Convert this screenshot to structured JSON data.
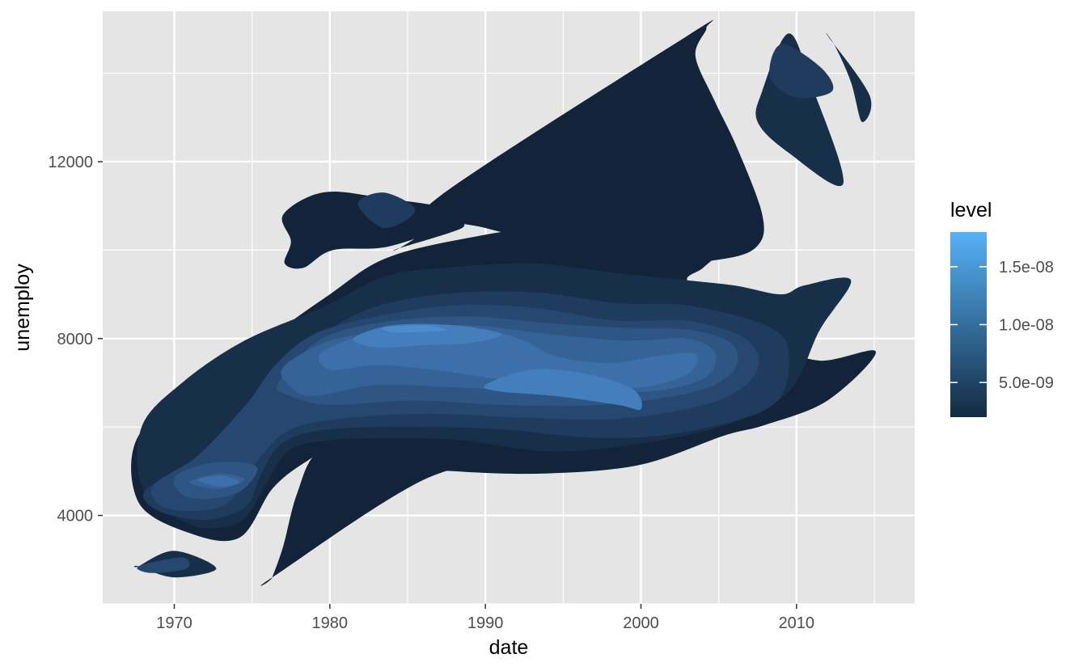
{
  "chart_data": {
    "type": "density_2d_filled_contour",
    "title": "",
    "xlabel": "date",
    "ylabel": "unemploy",
    "x_ticks": [
      "1970",
      "1980",
      "1990",
      "2000",
      "2010"
    ],
    "x_tick_years": [
      1970,
      1980,
      1990,
      2000,
      2010
    ],
    "y_ticks": [
      4000,
      8000,
      12000
    ],
    "y_tick_labels": [
      "4000",
      "8000",
      "12000"
    ],
    "xlim": [
      1965.4,
      2017.6
    ],
    "ylim": [
      2000,
      15400
    ],
    "grid": true,
    "panel_background": "#E5E5E5",
    "legend": {
      "title": "level",
      "position": "right",
      "type": "colorbar",
      "labels": [
        "5.0e-09",
        "1.0e-08",
        "1.5e-08"
      ],
      "values": [
        5e-09,
        1e-08,
        1.5e-08
      ],
      "range": [
        2e-09,
        1.8e-08
      ],
      "color_low": "#132B43",
      "color_high": "#56B1F7"
    },
    "density_bands": [
      {
        "level": 1,
        "color": "#13243A",
        "regions": [
          [
            [
              1967.7,
              5800
            ],
            [
              1972.0,
              6900
            ],
            [
              1976.0,
              8000
            ],
            [
              1980.0,
              9000
            ],
            [
              1983.5,
              9800
            ],
            [
              1988.5,
              10250
            ],
            [
              1995.5,
              10600
            ],
            [
              2001.0,
              10400
            ],
            [
              2004.4,
              10300
            ],
            [
              2005.1,
              10000
            ],
            [
              2004.0,
              9600
            ],
            [
              2003.0,
              9300
            ],
            [
              2005.5,
              8800
            ],
            [
              2008.5,
              7900
            ],
            [
              2011.5,
              7500
            ],
            [
              2015.1,
              7700
            ],
            [
              2012.0,
              6600
            ],
            [
              2008.0,
              6050
            ],
            [
              2005.3,
              5800
            ],
            [
              2000.0,
              5150
            ],
            [
              1994.0,
              4950
            ],
            [
              1988.0,
              5000
            ],
            [
              1983.0,
              5200
            ],
            [
              1980.3,
              5500
            ],
            [
              1978.4,
              5200
            ],
            [
              1976.3,
              4600
            ],
            [
              1974.2,
              3500
            ],
            [
              1971.0,
              3600
            ],
            [
              1967.7,
              4300
            ]
          ],
          [
            [
              1984.5,
              10050
            ],
            [
              1987.5,
              10650
            ],
            [
              1988.5,
              10500
            ],
            [
              1984.5,
              10050
            ]
          ],
          [
            [
              1978.3,
              9600
            ],
            [
              1980.2,
              10000
            ],
            [
              1984.0,
              10100
            ],
            [
              1988.6,
              10800
            ],
            [
              1983.0,
              11200
            ],
            [
              1979.5,
              11300
            ],
            [
              1977.0,
              10800
            ],
            [
              1977.5,
              10200
            ],
            [
              1977.1,
              9700
            ]
          ],
          [
            [
              1987.0,
              11200
            ],
            [
              2003.0,
              14850
            ],
            [
              2004.2,
              15020
            ],
            [
              2003.5,
              14400
            ],
            [
              2004.7,
              13400
            ],
            [
              2006.2,
              12300
            ],
            [
              2007.8,
              10800
            ],
            [
              2007.5,
              10100
            ],
            [
              2005.3,
              9800
            ],
            [
              2000.5,
              9700
            ],
            [
              1995.5,
              10000
            ],
            [
              1990.0,
              10500
            ],
            [
              1987.5,
              10700
            ]
          ],
          [
            [
              1976.3,
              2600
            ],
            [
              1977.0,
              3300
            ],
            [
              1977.9,
              4500
            ],
            [
              1979.3,
              5450
            ],
            [
              1983.0,
              5800
            ],
            [
              1987.0,
              5600
            ],
            [
              1993.5,
              5500
            ],
            [
              1986.0,
              4800
            ],
            [
              1976.3,
              2600
            ]
          ]
        ]
      },
      {
        "level": 2,
        "color": "#182F4A",
        "regions": [
          [
            [
              1971.0,
              3800
            ],
            [
              1968.0,
              4600
            ],
            [
              1967.9,
              6000
            ],
            [
              1970.5,
              7000
            ],
            [
              1974.5,
              7950
            ],
            [
              1979.5,
              8700
            ],
            [
              1983.5,
              9400
            ],
            [
              1987.5,
              9600
            ],
            [
              1993.0,
              9700
            ],
            [
              1998.0,
              9500
            ],
            [
              2002.0,
              9350
            ],
            [
              2006.0,
              9200
            ],
            [
              2009.0,
              9000
            ],
            [
              2010.5,
              9200
            ],
            [
              2013.5,
              9320
            ],
            [
              2011.5,
              8200
            ],
            [
              2009.5,
              6800
            ],
            [
              2005.5,
              6050
            ],
            [
              1999.5,
              5600
            ],
            [
              1994.0,
              5450
            ],
            [
              1988.5,
              5700
            ],
            [
              1984.0,
              5750
            ],
            [
              1980.0,
              5700
            ],
            [
              1977.5,
              5500
            ],
            [
              1976.2,
              4900
            ],
            [
              1974.8,
              4050
            ],
            [
              1973.4,
              3750
            ]
          ],
          [
            [
              2007.8,
              13600
            ],
            [
              2009.5,
              14900
            ],
            [
              2011.0,
              13700
            ],
            [
              2013.0,
              11500
            ],
            [
              2009.5,
              12200
            ],
            [
              2007.5,
              12900
            ]
          ],
          [
            [
              2012.0,
              14850
            ],
            [
              2014.7,
              13500
            ],
            [
              2014.2,
              12900
            ],
            [
              2013.5,
              13800
            ],
            [
              2012.5,
              14600
            ]
          ],
          [
            [
              1967.7,
              2850
            ],
            [
              1970.0,
              3200
            ],
            [
              1972.7,
              2800
            ],
            [
              1970.0,
              2600
            ],
            [
              1967.7,
              2850
            ]
          ]
        ]
      },
      {
        "level": 3,
        "color": "#1F3B5D",
        "regions": [
          [
            [
              1968.1,
              4550
            ],
            [
              1971.0,
              5150
            ],
            [
              1973.4,
              5750
            ],
            [
              1975.5,
              6700
            ],
            [
              1978.3,
              7700
            ],
            [
              1982.0,
              8600
            ],
            [
              1987.0,
              9000
            ],
            [
              1993.0,
              9050
            ],
            [
              1998.5,
              8800
            ],
            [
              2003.0,
              8750
            ],
            [
              2008.0,
              8300
            ],
            [
              2009.5,
              7700
            ],
            [
              2008.5,
              6500
            ],
            [
              2003.0,
              5900
            ],
            [
              1997.5,
              5750
            ],
            [
              1991.0,
              5950
            ],
            [
              1986.0,
              6000
            ],
            [
              1980.0,
              5950
            ],
            [
              1977.0,
              5650
            ],
            [
              1975.6,
              4950
            ],
            [
              1974.6,
              4200
            ],
            [
              1972.0,
              3900
            ],
            [
              1969.0,
              4100
            ]
          ],
          [
            [
              2009.0,
              14650
            ],
            [
              2011.5,
              14150
            ],
            [
              2012.3,
              13600
            ],
            [
              2010.0,
              13450
            ],
            [
              2008.3,
              13900
            ]
          ],
          [
            [
              1981.8,
              11050
            ],
            [
              1983.5,
              11300
            ],
            [
              1985.5,
              10900
            ],
            [
              1983.5,
              10500
            ]
          ]
        ]
      },
      {
        "level": 4,
        "color": "#264870",
        "regions": [
          [
            [
              1968.7,
              4700
            ],
            [
              1971.5,
              5350
            ],
            [
              1974.6,
              6500
            ],
            [
              1976.5,
              7400
            ],
            [
              1979.0,
              8100
            ],
            [
              1983.0,
              8500
            ],
            [
              1988.0,
              8750
            ],
            [
              1993.0,
              8700
            ],
            [
              1998.5,
              8400
            ],
            [
              2003.0,
              8400
            ],
            [
              2006.7,
              8000
            ],
            [
              2007.5,
              7300
            ],
            [
              2005.0,
              6600
            ],
            [
              1999.0,
              6200
            ],
            [
              1993.0,
              6200
            ],
            [
              1986.5,
              6300
            ],
            [
              1981.0,
              6200
            ],
            [
              1977.5,
              5950
            ],
            [
              1975.5,
              5300
            ],
            [
              1973.5,
              4300
            ],
            [
              1971.0,
              4100
            ],
            [
              1969.0,
              4250
            ]
          ],
          [
            [
              1967.7,
              2850
            ],
            [
              1970.5,
              3050
            ],
            [
              1970.8,
              2800
            ],
            [
              1968.5,
              2700
            ]
          ]
        ]
      },
      {
        "level": 5,
        "color": "#2E5583",
        "regions": [
          [
            [
              1970.0,
              4850
            ],
            [
              1972.5,
              5200
            ],
            [
              1975.3,
              5100
            ],
            [
              1974.0,
              4500
            ],
            [
              1971.0,
              4400
            ]
          ],
          [
            [
              1976.7,
              7000
            ],
            [
              1979.5,
              8000
            ],
            [
              1984.0,
              8400
            ],
            [
              1989.0,
              8500
            ],
            [
              1994.0,
              8350
            ],
            [
              1998.5,
              8250
            ],
            [
              2003.0,
              8200
            ],
            [
              2005.8,
              7900
            ],
            [
              2006.0,
              7300
            ],
            [
              2003.5,
              6800
            ],
            [
              1997.5,
              6500
            ],
            [
              1991.0,
              6500
            ],
            [
              1985.5,
              6600
            ],
            [
              1980.0,
              6500
            ],
            [
              1977.5,
              6700
            ]
          ]
        ]
      },
      {
        "level": 6,
        "color": "#366397",
        "regions": [
          [
            [
              1971.0,
              4750
            ],
            [
              1973.0,
              4950
            ],
            [
              1974.5,
              4800
            ],
            [
              1972.8,
              4600
            ]
          ],
          [
            [
              1977.0,
              7350
            ],
            [
              1980.0,
              7950
            ],
            [
              1984.5,
              8200
            ],
            [
              1989.0,
              8300
            ],
            [
              1994.0,
              8100
            ],
            [
              1999.0,
              7950
            ],
            [
              2003.0,
              8000
            ],
            [
              2004.8,
              7650
            ],
            [
              2004.0,
              7100
            ],
            [
              2000.5,
              6800
            ],
            [
              1994.0,
              6800
            ],
            [
              1988.0,
              6900
            ],
            [
              1983.0,
              6950
            ],
            [
              1979.0,
              6700
            ],
            [
              1977.5,
              6900
            ]
          ]
        ]
      },
      {
        "level": 7,
        "color": "#3D70AA",
        "regions": [
          [
            [
              1971.5,
              4800
            ],
            [
              1973.0,
              4900
            ],
            [
              1974.2,
              4750
            ],
            [
              1973.0,
              4650
            ]
          ],
          [
            [
              1979.5,
              7700
            ],
            [
              1983.0,
              8150
            ],
            [
              1987.0,
              8250
            ],
            [
              1990.0,
              8200
            ],
            [
              1992.5,
              7950
            ],
            [
              1994.5,
              7600
            ],
            [
              1998.0,
              7450
            ],
            [
              2001.0,
              7600
            ],
            [
              2003.5,
              7650
            ],
            [
              2003.0,
              7200
            ],
            [
              2000.0,
              6900
            ],
            [
              1995.0,
              6900
            ],
            [
              1990.5,
              7100
            ],
            [
              1986.5,
              7300
            ],
            [
              1983.0,
              7400
            ],
            [
              1980.0,
              7300
            ]
          ]
        ]
      },
      {
        "level": 8,
        "color": "#447EBD",
        "regions": [
          [
            [
              1981.5,
              8000
            ],
            [
              1984.0,
              8300
            ],
            [
              1988.0,
              8300
            ],
            [
              1991.0,
              8100
            ],
            [
              1989.0,
              7900
            ],
            [
              1986.0,
              7850
            ],
            [
              1983.0,
              7800
            ]
          ],
          [
            [
              1990.0,
              6950
            ],
            [
              1993.0,
              7300
            ],
            [
              1996.5,
              7200
            ],
            [
              1999.5,
              6850
            ],
            [
              2000.0,
              6400
            ],
            [
              1998.5,
              6500
            ],
            [
              1994.5,
              6700
            ],
            [
              1991.0,
              6800
            ]
          ]
        ]
      },
      {
        "level": 9,
        "color": "#4C8CD1",
        "regions": [
          [
            [
              1983.5,
              8250
            ],
            [
              1986.0,
              8300
            ],
            [
              1987.5,
              8200
            ],
            [
              1986.0,
              8150
            ],
            [
              1984.0,
              8150
            ]
          ]
        ]
      }
    ]
  }
}
